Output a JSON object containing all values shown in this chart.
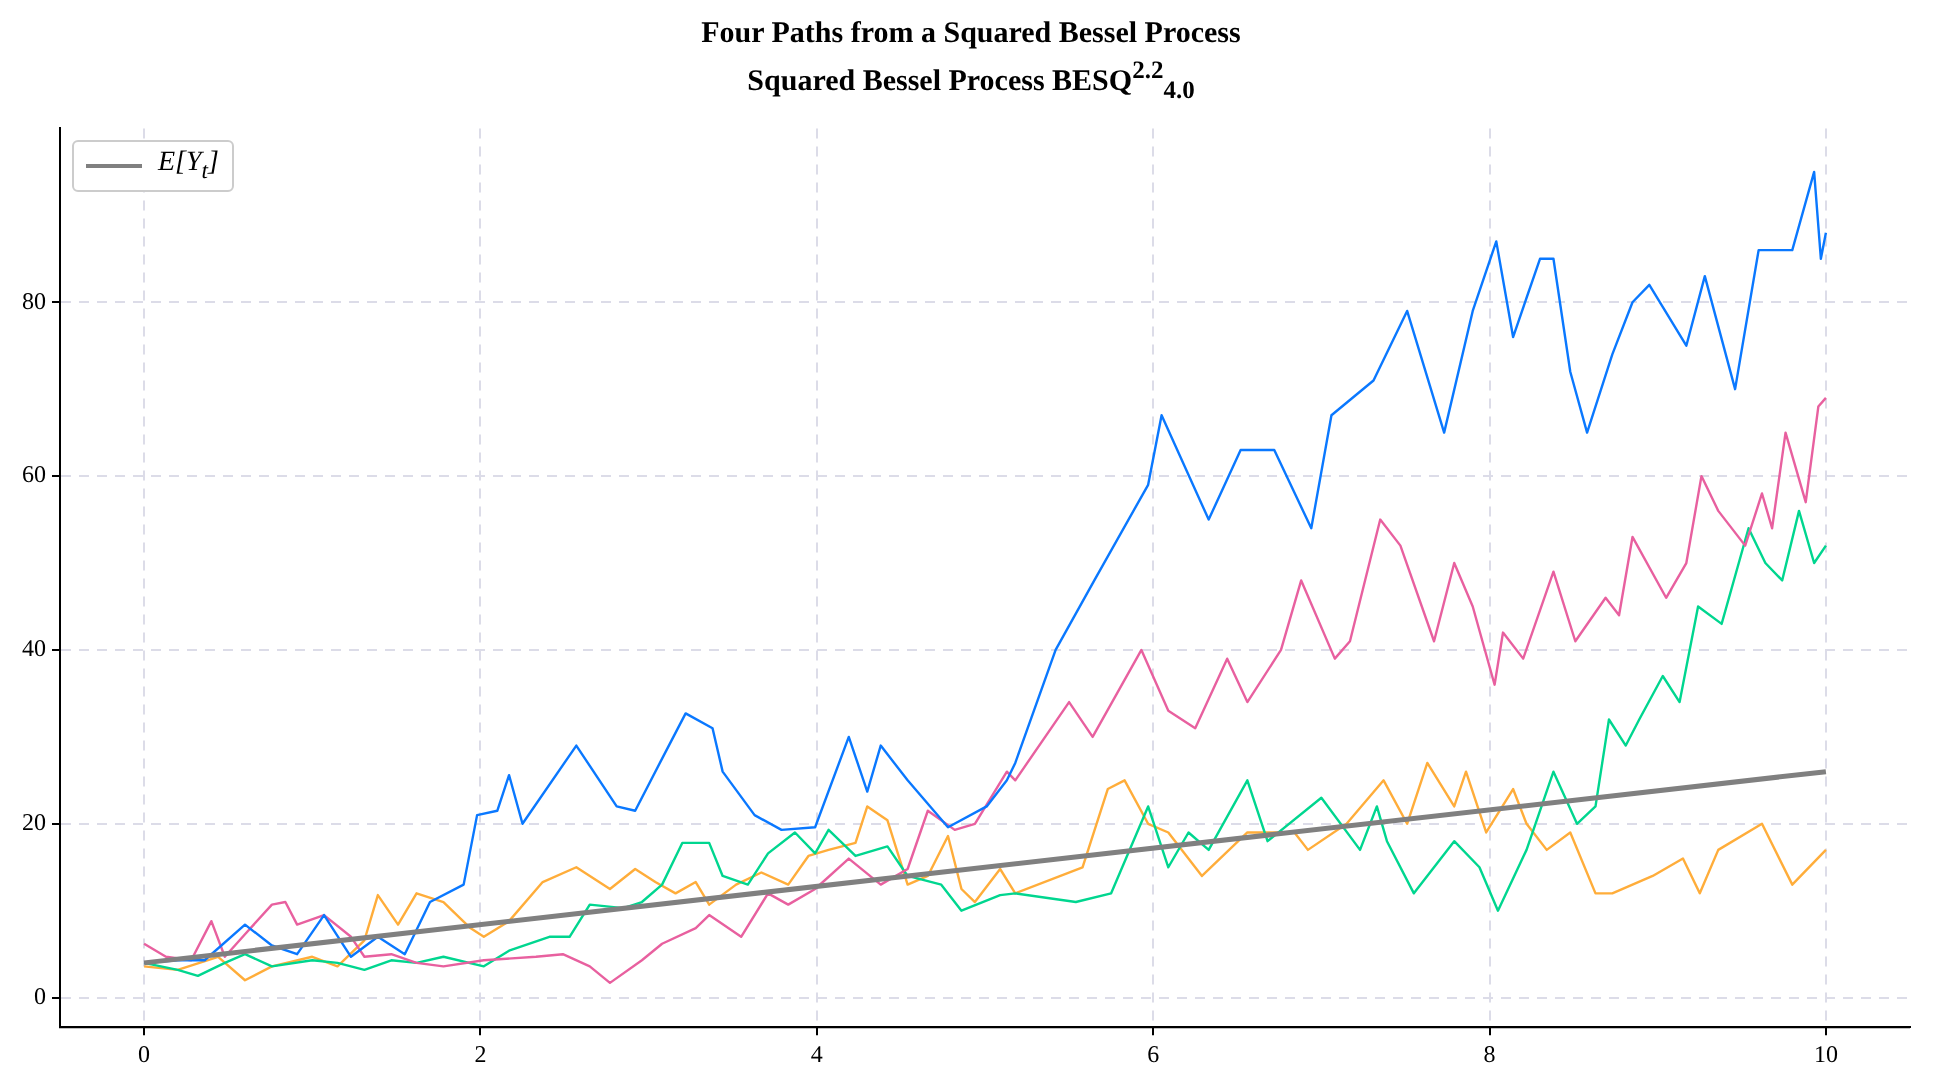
{
  "chart_data": {
    "type": "line",
    "title": "Four Paths from a Squared Bessel Process",
    "subtitle": "Squared Bessel Process BESQ$^{2.2}$$_{4.0}$",
    "xlim": [
      -0.5,
      10.5
    ],
    "ylim": [
      -3.4,
      100
    ],
    "xticks": [
      0,
      2,
      4,
      6,
      8,
      10
    ],
    "yticks": [
      0,
      20,
      40,
      60,
      80
    ],
    "grid": true,
    "legend": "top left",
    "line_style": "solid",
    "marker": "none",
    "series": [
      {
        "color": "#0a78ff",
        "x": [
          0,
          0.2,
          0.36,
          0.6,
          0.76,
          0.91,
          1.07,
          1.23,
          1.39,
          1.55,
          1.7,
          1.9,
          1.98,
          2.1,
          2.17,
          2.25,
          2.57,
          2.81,
          2.92,
          3.08,
          3.22,
          3.38,
          3.44,
          3.63,
          3.79,
          3.99,
          4.19,
          4.3,
          4.38,
          4.54,
          4.78,
          5.01,
          5.13,
          5.18,
          5.42,
          5.65,
          5.97,
          6.05,
          6.33,
          6.52,
          6.72,
          6.94,
          7.06,
          7.31,
          7.51,
          7.73,
          7.9,
          8.04,
          8.14,
          8.3,
          8.38,
          8.48,
          8.58,
          8.73,
          8.85,
          8.95,
          9.17,
          9.28,
          9.46,
          9.6,
          9.8,
          9.93,
          9.97,
          10
        ],
        "values": [
          4,
          4.3,
          4.3,
          8.4,
          6,
          5,
          9.5,
          4.7,
          7,
          5,
          11,
          13,
          21,
          21.5,
          25.6,
          20,
          29,
          22,
          21.5,
          27.5,
          32.7,
          31,
          26,
          21,
          19.3,
          19.6,
          30,
          23.7,
          29,
          25,
          19.6,
          22,
          25,
          27,
          40,
          48,
          59,
          67,
          55,
          63,
          63,
          54,
          67,
          71,
          79,
          65,
          79,
          87,
          76,
          85,
          85,
          72,
          65,
          74,
          80,
          82,
          75,
          83,
          70,
          86,
          86,
          95,
          85,
          88
        ]
      },
      {
        "color": "#e8609f",
        "x": [
          0,
          0.13,
          0.28,
          0.4,
          0.48,
          0.6,
          0.76,
          0.84,
          0.91,
          1.07,
          1.23,
          1.31,
          1.47,
          1.62,
          1.78,
          2.02,
          2.33,
          2.49,
          2.65,
          2.77,
          2.96,
          3.08,
          3.28,
          3.36,
          3.55,
          3.71,
          3.83,
          3.99,
          4.19,
          4.38,
          4.54,
          4.66,
          4.82,
          4.94,
          5.13,
          5.18,
          5.5,
          5.64,
          5.93,
          6.09,
          6.25,
          6.44,
          6.56,
          6.76,
          6.88,
          7.08,
          7.17,
          7.35,
          7.47,
          7.67,
          7.79,
          7.9,
          8.03,
          8.08,
          8.2,
          8.38,
          8.51,
          8.69,
          8.77,
          8.85,
          9.05,
          9.17,
          9.26,
          9.36,
          9.52,
          9.62,
          9.68,
          9.76,
          9.88,
          9.955,
          10
        ],
        "values": [
          6.2,
          4.7,
          4.3,
          8.8,
          4.7,
          7.3,
          10.7,
          11,
          8.4,
          9.5,
          7,
          4.7,
          5,
          4,
          3.6,
          4.3,
          4.7,
          5,
          3.6,
          1.7,
          4.3,
          6.2,
          8,
          9.5,
          7,
          12,
          10.7,
          12.5,
          16,
          13,
          14.8,
          21.5,
          19.3,
          20,
          26,
          25,
          34,
          30,
          40,
          33,
          31,
          39,
          34,
          40,
          48,
          39,
          41,
          55,
          52,
          41,
          50,
          45,
          36,
          42,
          39,
          49,
          41,
          46,
          44,
          53,
          46,
          50,
          60,
          56,
          52,
          58,
          54,
          65,
          57,
          68,
          69
        ]
      },
      {
        "color": "#00d68f",
        "x": [
          0,
          0.2,
          0.32,
          0.48,
          0.6,
          0.76,
          1,
          1.15,
          1.31,
          1.47,
          1.62,
          1.78,
          2.02,
          2.17,
          2.41,
          2.53,
          2.65,
          2.85,
          2.96,
          3.08,
          3.2,
          3.36,
          3.44,
          3.59,
          3.71,
          3.87,
          3.99,
          4.07,
          4.23,
          4.42,
          4.54,
          4.74,
          4.86,
          5.09,
          5.18,
          5.54,
          5.75,
          5.97,
          6.09,
          6.21,
          6.33,
          6.56,
          6.68,
          7,
          7.23,
          7.33,
          7.39,
          7.55,
          7.79,
          7.94,
          8.05,
          8.22,
          8.38,
          8.52,
          8.63,
          8.71,
          8.81,
          8.89,
          9.03,
          9.13,
          9.24,
          9.38,
          9.54,
          9.64,
          9.74,
          9.84,
          9.93,
          10
        ],
        "values": [
          4,
          3.2,
          2.5,
          4,
          5,
          3.6,
          4.3,
          4,
          3.2,
          4.3,
          4,
          4.7,
          3.6,
          5.4,
          7,
          7,
          10.7,
          10.3,
          11,
          13,
          17.8,
          17.8,
          14,
          13,
          16.6,
          19,
          16.6,
          19.3,
          16.3,
          17.4,
          14,
          13,
          10,
          11.8,
          12,
          11,
          12,
          22,
          15,
          19,
          17,
          25,
          18,
          23,
          17,
          22,
          18,
          12,
          18,
          15,
          10,
          17,
          26,
          20,
          22,
          32,
          29,
          32,
          37,
          34,
          45,
          43,
          54,
          50,
          48,
          56,
          50,
          52
        ]
      },
      {
        "color": "#ffad3a",
        "x": [
          0,
          0.2,
          0.44,
          0.6,
          0.76,
          1,
          1.15,
          1.31,
          1.39,
          1.51,
          1.62,
          1.78,
          1.94,
          2.02,
          2.17,
          2.37,
          2.57,
          2.77,
          2.92,
          3.04,
          3.16,
          3.28,
          3.36,
          3.52,
          3.67,
          3.83,
          3.95,
          4.07,
          4.23,
          4.3,
          4.42,
          4.54,
          4.66,
          4.78,
          4.86,
          4.94,
          5.09,
          5.18,
          5.58,
          5.73,
          5.83,
          5.97,
          6.09,
          6.29,
          6.56,
          6.84,
          6.92,
          7.15,
          7.37,
          7.51,
          7.63,
          7.79,
          7.86,
          7.98,
          8.14,
          8.22,
          8.34,
          8.48,
          8.63,
          8.73,
          8.97,
          9.15,
          9.25,
          9.36,
          9.62,
          9.8,
          10
        ],
        "values": [
          3.6,
          3.2,
          4.7,
          2,
          3.6,
          4.7,
          3.6,
          6.6,
          11.8,
          8.4,
          12,
          11,
          8,
          7,
          8.8,
          13.3,
          15,
          12.5,
          14.8,
          13.3,
          12,
          13.3,
          10.7,
          13,
          14.4,
          13,
          16.3,
          17,
          17.8,
          22,
          20.4,
          13,
          14,
          18.6,
          12.5,
          11,
          14.8,
          12,
          15,
          24,
          25,
          20,
          19,
          14,
          19,
          19,
          17,
          20,
          25,
          20,
          27,
          22,
          26,
          19,
          24,
          20,
          17,
          19,
          12,
          12,
          14,
          16,
          12,
          17,
          20,
          13,
          17
        ]
      },
      {
        "name": "E[Y$_{t}$]",
        "color": "#808080",
        "x": [
          0,
          10
        ],
        "values": [
          4,
          26
        ]
      }
    ]
  }
}
